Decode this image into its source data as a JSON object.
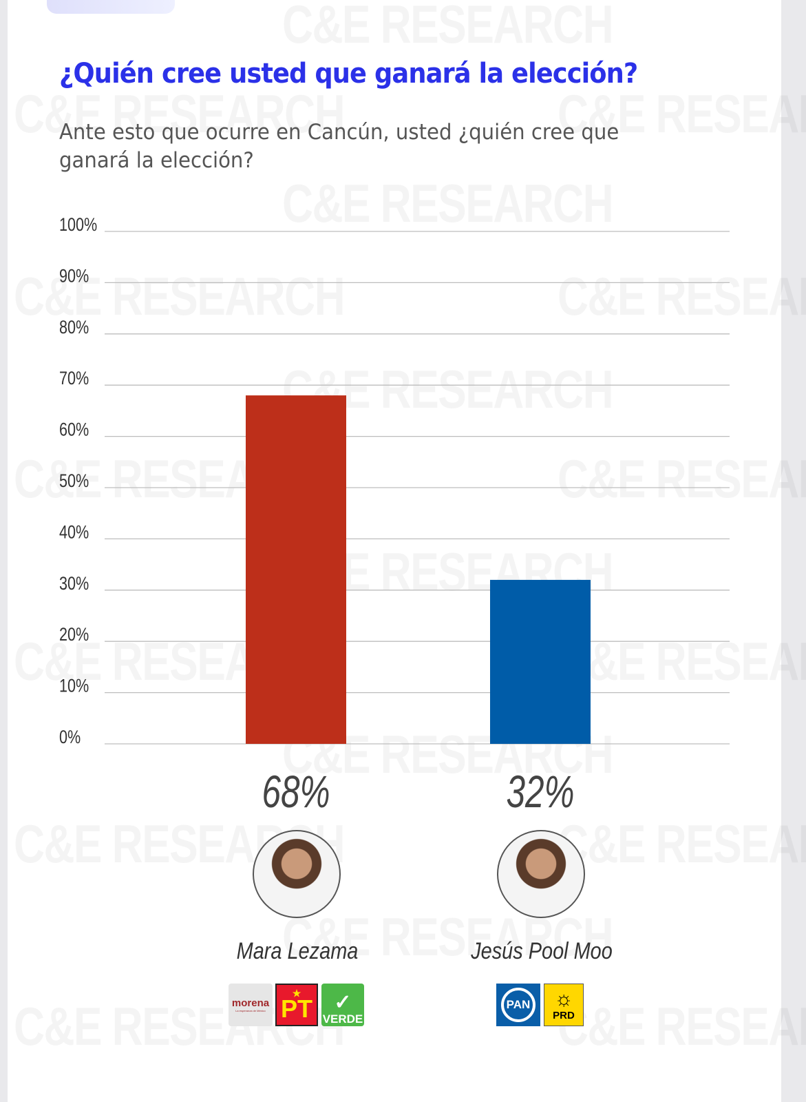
{
  "watermark": "C&E RESEARCH",
  "title": "¿Quién cree usted que ganará la elección?",
  "subtitle": "Ante esto que ocurre en Cancún, usted ¿quién cree que ganará la elección?",
  "chart_data": {
    "type": "bar",
    "categories": [
      "Mara Lezama",
      "Jesús Pool Moo"
    ],
    "values": [
      68,
      32
    ],
    "value_labels": [
      "68%",
      "32%"
    ],
    "colors": [
      "#bd2f1a",
      "#005ca8"
    ],
    "ylim": [
      0,
      100
    ],
    "yticks": [
      "0%",
      "10%",
      "20%",
      "30%",
      "40%",
      "50%",
      "60%",
      "70%",
      "80%",
      "90%",
      "100%"
    ],
    "grid": true,
    "title": "",
    "xlabel": "",
    "ylabel": ""
  },
  "candidates": [
    {
      "name": "Mara Lezama",
      "parties": [
        "morena",
        "PT",
        "VERDE"
      ],
      "party_tagline": "La esperanza de México"
    },
    {
      "name": "Jesús Pool Moo",
      "parties": [
        "PAN",
        "PRD"
      ]
    }
  ]
}
